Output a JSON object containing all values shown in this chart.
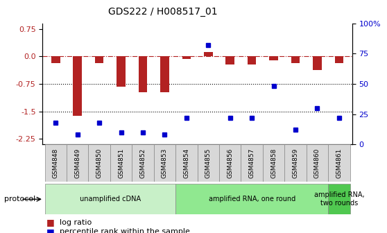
{
  "title": "GDS222 / H008517_01",
  "samples": [
    "GSM4848",
    "GSM4849",
    "GSM4850",
    "GSM4851",
    "GSM4852",
    "GSM4853",
    "GSM4854",
    "GSM4855",
    "GSM4856",
    "GSM4857",
    "GSM4858",
    "GSM4859",
    "GSM4860",
    "GSM4861"
  ],
  "log_ratio": [
    -0.18,
    -1.62,
    -0.18,
    -0.82,
    -0.97,
    -0.97,
    -0.08,
    0.12,
    -0.22,
    -0.22,
    -0.1,
    -0.18,
    -0.38,
    -0.18
  ],
  "percentile_rank": [
    18,
    8,
    18,
    10,
    10,
    8,
    22,
    82,
    22,
    22,
    48,
    12,
    30,
    22
  ],
  "protocols": [
    {
      "label": "unamplified cDNA",
      "start": 0,
      "end": 6,
      "color": "#c8f0c8"
    },
    {
      "label": "amplified RNA, one round",
      "start": 6,
      "end": 13,
      "color": "#90e890"
    },
    {
      "label": "amplified RNA,\ntwo rounds",
      "start": 13,
      "end": 14,
      "color": "#50c850"
    }
  ],
  "bar_color": "#b22222",
  "dot_color": "#0000cd",
  "ylim_left": [
    -2.4,
    0.9
  ],
  "ylim_right": [
    0,
    100
  ],
  "yticks_left": [
    0.75,
    0.0,
    -0.75,
    -1.5,
    -2.25
  ],
  "yticks_right": [
    100,
    75,
    50,
    25,
    0
  ],
  "background_color": "#ffffff"
}
